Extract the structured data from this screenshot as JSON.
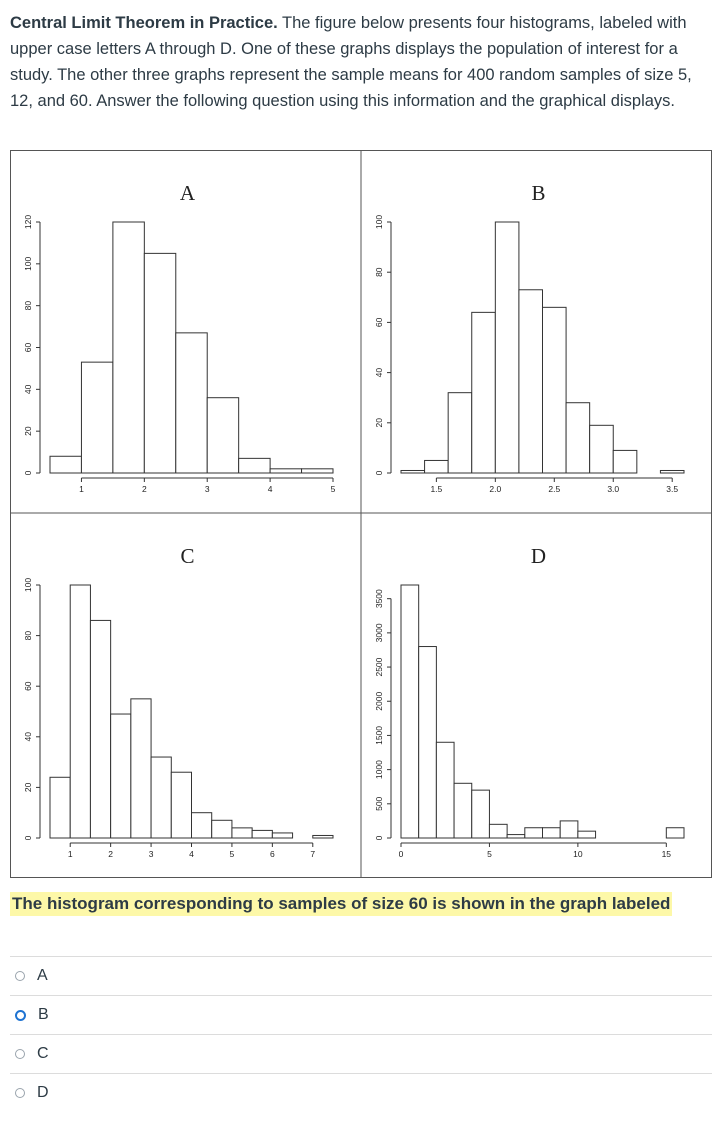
{
  "intro": {
    "bold": "Central Limit Theorem in Practice.",
    "text": " The figure below presents four histograms, labeled with upper case letters A through D. One of these graphs displays the population of interest for a study. The other three graphs represent the sample means for 400 random samples of size 5, 12, and 60. Answer the following question using this information and the graphical displays."
  },
  "question": "The histogram corresponding to samples of size 60 is shown in the graph labeled",
  "answers": [
    {
      "label": "A",
      "selected": false
    },
    {
      "label": "B",
      "selected": true
    },
    {
      "label": "C",
      "selected": false
    },
    {
      "label": "D",
      "selected": false
    }
  ],
  "chart_data": [
    {
      "type": "bar",
      "title": "A",
      "bins": [
        [
          0.5,
          1.0
        ],
        [
          1.0,
          1.5
        ],
        [
          1.5,
          2.0
        ],
        [
          2.0,
          2.5
        ],
        [
          2.5,
          3.0
        ],
        [
          3.0,
          3.5
        ],
        [
          3.5,
          4.0
        ],
        [
          4.0,
          4.5
        ],
        [
          4.5,
          5.0
        ]
      ],
      "values": [
        8,
        53,
        120,
        105,
        67,
        36,
        7,
        2,
        2
      ],
      "xticks": [
        1,
        2,
        3,
        4,
        5
      ],
      "xticklabels": [
        "1",
        "2",
        "3",
        "4",
        "5"
      ],
      "yticks": [
        0,
        20,
        40,
        60,
        80,
        100,
        120
      ],
      "xlim": [
        0.5,
        5.0
      ],
      "ylim": [
        0,
        120
      ]
    },
    {
      "type": "bar",
      "title": "B",
      "bins": [
        [
          1.2,
          1.4
        ],
        [
          1.4,
          1.6
        ],
        [
          1.6,
          1.8
        ],
        [
          1.8,
          2.0
        ],
        [
          2.0,
          2.2
        ],
        [
          2.2,
          2.4
        ],
        [
          2.4,
          2.6
        ],
        [
          2.6,
          2.8
        ],
        [
          2.8,
          3.0
        ],
        [
          3.0,
          3.2
        ],
        [
          3.2,
          3.4
        ],
        [
          3.4,
          3.6
        ]
      ],
      "values": [
        1,
        5,
        32,
        64,
        100,
        73,
        66,
        28,
        19,
        9,
        0,
        1
      ],
      "xticks": [
        1.5,
        2.0,
        2.5,
        3.0,
        3.5
      ],
      "xticklabels": [
        "1.5",
        "2.0",
        "2.5",
        "3.0",
        "3.5"
      ],
      "yticks": [
        0,
        20,
        40,
        60,
        80,
        100
      ],
      "xlim": [
        1.2,
        3.6
      ],
      "ylim": [
        0,
        100
      ]
    },
    {
      "type": "bar",
      "title": "C",
      "bins": [
        [
          0.5,
          1.0
        ],
        [
          1.0,
          1.5
        ],
        [
          1.5,
          2.0
        ],
        [
          2.0,
          2.5
        ],
        [
          2.5,
          3.0
        ],
        [
          3.0,
          3.5
        ],
        [
          3.5,
          4.0
        ],
        [
          4.0,
          4.5
        ],
        [
          4.5,
          5.0
        ],
        [
          5.0,
          5.5
        ],
        [
          5.5,
          6.0
        ],
        [
          6.0,
          6.5
        ],
        [
          6.5,
          7.0
        ],
        [
          7.0,
          7.5
        ]
      ],
      "values": [
        24,
        100,
        86,
        49,
        55,
        32,
        26,
        10,
        7,
        4,
        3,
        2,
        0,
        1
      ],
      "xticks": [
        1,
        2,
        3,
        4,
        5,
        6,
        7
      ],
      "xticklabels": [
        "1",
        "2",
        "3",
        "4",
        "5",
        "6",
        "7"
      ],
      "yticks": [
        0,
        20,
        40,
        60,
        80,
        100
      ],
      "xlim": [
        0.5,
        7.5
      ],
      "ylim": [
        0,
        100
      ]
    },
    {
      "type": "bar",
      "title": "D",
      "bins": [
        [
          0,
          1
        ],
        [
          1,
          2
        ],
        [
          2,
          3
        ],
        [
          3,
          4
        ],
        [
          4,
          5
        ],
        [
          5,
          6
        ],
        [
          6,
          7
        ],
        [
          7,
          8
        ],
        [
          8,
          9
        ],
        [
          9,
          10
        ],
        [
          10,
          11
        ],
        [
          11,
          12
        ],
        [
          12,
          13
        ],
        [
          13,
          14
        ],
        [
          14,
          15
        ],
        [
          15,
          16
        ]
      ],
      "values": [
        3700,
        2800,
        1400,
        800,
        700,
        200,
        50,
        150,
        150,
        250,
        100,
        0,
        0,
        0,
        0,
        150
      ],
      "xticks": [
        0,
        5,
        10,
        15
      ],
      "xticklabels": [
        "0",
        "5",
        "10",
        "15"
      ],
      "yticks": [
        0,
        500,
        1000,
        1500,
        2000,
        2500,
        3000,
        3500
      ],
      "xlim": [
        0,
        16
      ],
      "ylim": [
        0,
        3700
      ]
    }
  ]
}
